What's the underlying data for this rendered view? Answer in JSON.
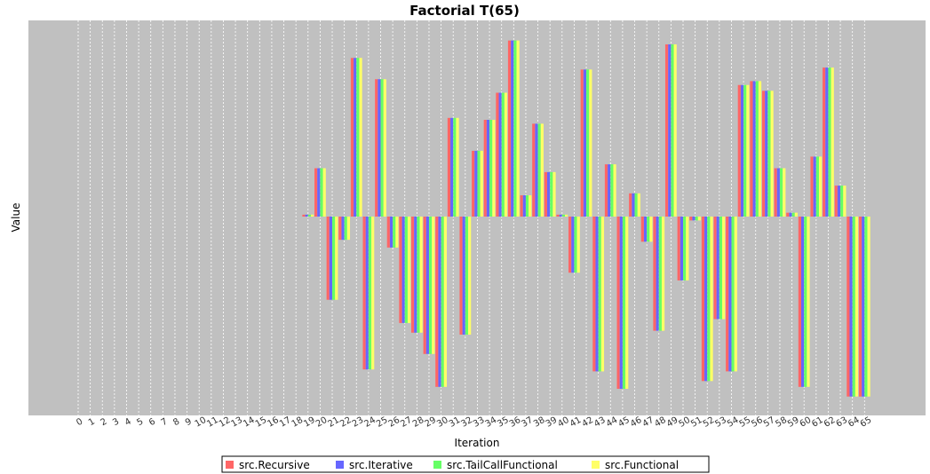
{
  "chart_data": {
    "type": "bar",
    "title": "Factorial T(65)",
    "xlabel": "Iteration",
    "ylabel": "Value",
    "ylim": [
      -100,
      100
    ],
    "grid": true,
    "legend_position": "bottom",
    "categories": [
      "0",
      "1",
      "2",
      "3",
      "4",
      "5",
      "6",
      "7",
      "8",
      "9",
      "10",
      "11",
      "12",
      "13",
      "14",
      "15",
      "16",
      "17",
      "18",
      "19",
      "20",
      "21",
      "22",
      "23",
      "24",
      "25",
      "26",
      "27",
      "28",
      "29",
      "30",
      "31",
      "32",
      "33",
      "34",
      "35",
      "36",
      "37",
      "38",
      "39",
      "40",
      "41",
      "42",
      "43",
      "44",
      "45",
      "46",
      "47",
      "48",
      "49",
      "50",
      "51",
      "52",
      "53",
      "54",
      "55",
      "56",
      "57",
      "58",
      "59",
      "60",
      "61",
      "62",
      "63",
      "64",
      "65"
    ],
    "series": [
      {
        "name": "src.Recursive",
        "color": "#ff6666"
      },
      {
        "name": "src.Iterative",
        "color": "#6666ff"
      },
      {
        "name": "src.TailCallFunctional",
        "color": "#66ff66"
      },
      {
        "name": "src.Functional",
        "color": "#ffff66"
      }
    ],
    "values": [
      0,
      0,
      0,
      0,
      0,
      0,
      0,
      0,
      0,
      0,
      0,
      0,
      0,
      0,
      0,
      0,
      0,
      0,
      0,
      1,
      25,
      -43,
      -12,
      82,
      -79,
      71,
      -16,
      -55,
      -60,
      -71,
      -88,
      51,
      -61,
      34,
      50,
      64,
      91,
      11,
      48,
      23,
      1,
      -29,
      76,
      -80,
      27,
      -89,
      12,
      -13,
      -59,
      89,
      -33,
      -2,
      -85,
      -53,
      -80,
      68,
      70,
      65,
      25,
      2,
      -88,
      31,
      77,
      16,
      -93,
      -93
    ]
  }
}
